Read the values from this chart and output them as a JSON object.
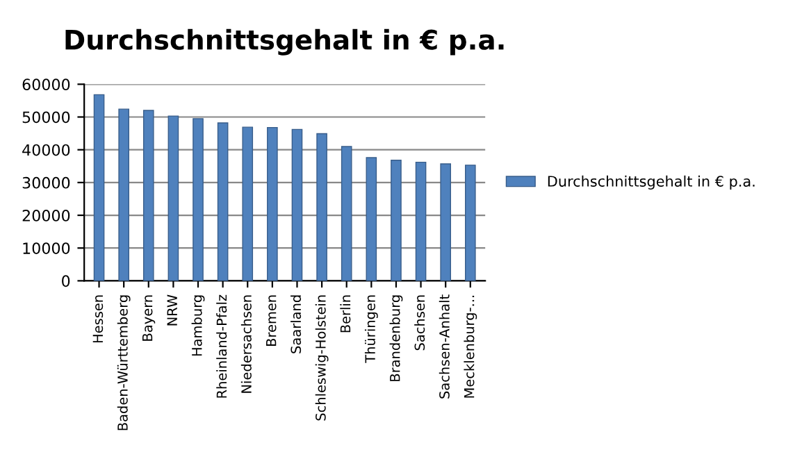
{
  "chart_data": {
    "type": "bar",
    "title": "Durchschnittsgehalt in € p.a.",
    "categories": [
      "Hessen",
      "Baden-Württemberg",
      "Bayern",
      "NRW",
      "Hamburg",
      "Rheinland-Pfalz",
      "Niedersachsen",
      "Bremen",
      "Saarland",
      "Schleswig-Holstein",
      "Berlin",
      "Thüringen",
      "Brandenburg",
      "Sachsen",
      "Sachsen-Anhalt",
      "Mecklenburg-..."
    ],
    "series": [
      {
        "name": "Durchschnittsgehalt in € p.a.",
        "color": "#4f81bd",
        "values": [
          56800,
          52400,
          52000,
          50300,
          49500,
          48200,
          46900,
          46800,
          46200,
          44900,
          41000,
          37600,
          36800,
          36200,
          35700,
          35300
        ]
      }
    ],
    "ylim": [
      0,
      60000
    ],
    "yticks": [
      0,
      10000,
      20000,
      30000,
      40000,
      50000,
      60000
    ],
    "grid": "y",
    "legend": "right"
  }
}
